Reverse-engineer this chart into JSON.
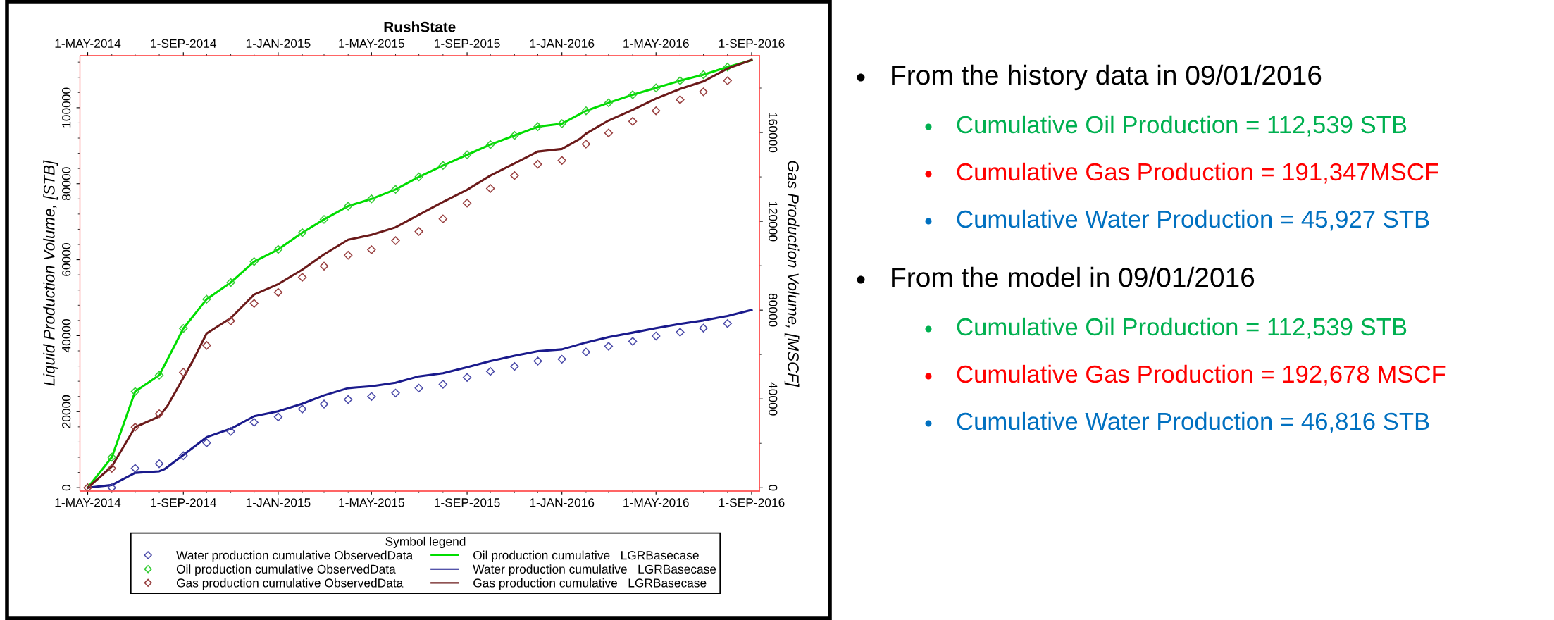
{
  "chart_data": [
    {
      "type": "line",
      "title": "RushState",
      "ylabel": "Liquid Production Volume, [STB]",
      "y2label": "Gas Production Volume, [MSCF]",
      "legend_title": "Symbol legend",
      "legend": "bottom",
      "x": [
        "2014-05-01",
        "2014-06-01",
        "2014-07-01",
        "2014-08-01",
        "2014-09-01",
        "2014-10-01",
        "2014-11-01",
        "2014-12-01",
        "2015-01-01",
        "2015-02-01",
        "2015-03-01",
        "2015-04-01",
        "2015-05-01",
        "2015-06-01",
        "2015-07-01",
        "2015-08-01",
        "2015-09-01",
        "2015-10-01",
        "2015-11-01",
        "2015-12-01",
        "2016-01-01",
        "2016-02-01",
        "2016-03-01",
        "2016-04-01",
        "2016-05-01",
        "2016-06-01",
        "2016-07-01",
        "2016-08-01"
      ],
      "series": [
        {
          "name": "Water production cumulative ObservedData",
          "type": "scatter",
          "marker": "diamond",
          "color": "#4a4aa8",
          "values": [
            null,
            0,
            5100,
            6300,
            8400,
            11800,
            14800,
            17200,
            18600,
            20700,
            22000,
            23200,
            24000,
            24900,
            26200,
            27200,
            29000,
            30600,
            31900,
            33300,
            33800,
            35700,
            37200,
            38500,
            39900,
            40900,
            42000,
            43200
          ]
        },
        {
          "name": "Oil production cumulative ObservedData",
          "type": "scatter",
          "marker": "diamond",
          "color": "#33cc33",
          "values": [
            null,
            8000,
            25300,
            29600,
            41900,
            49600,
            54000,
            59500,
            62700,
            67100,
            70600,
            74100,
            76000,
            78500,
            81800,
            84800,
            87600,
            90300,
            92700,
            95000,
            95800,
            99200,
            101300,
            103400,
            105200,
            107100,
            108700,
            110700
          ]
        },
        {
          "name": "Gas production cumulative ObservedData",
          "type": "scatter",
          "marker": "diamond",
          "color": "#994040",
          "axis": "y2",
          "values": [
            0,
            8700,
            27300,
            33300,
            52000,
            64100,
            75100,
            83000,
            88000,
            94800,
            99800,
            104700,
            107200,
            111300,
            115400,
            121100,
            128200,
            134800,
            140600,
            145700,
            147400,
            154800,
            159800,
            165000,
            169800,
            174800,
            178300,
            183300
          ]
        },
        {
          "name": "Oil production cumulative   LGRBasecase",
          "type": "line",
          "color": "#00dd00",
          "x": [
            "2014-05-01",
            "2014-06-01",
            "2014-07-01",
            "2014-08-01",
            "2014-08-11",
            "2014-09-01",
            "2014-10-01",
            "2014-11-01",
            "2014-12-01",
            "2015-01-01",
            "2015-02-01",
            "2015-03-01",
            "2015-04-01",
            "2015-05-01",
            "2015-06-01",
            "2015-07-01",
            "2015-08-01",
            "2015-09-01",
            "2015-10-01",
            "2015-11-01",
            "2015-12-01",
            "2016-01-01",
            "2016-02-01",
            "2016-03-01",
            "2016-04-01",
            "2016-05-01",
            "2016-06-01",
            "2016-07-01",
            "2016-08-01",
            "2016-09-01"
          ],
          "values": [
            0,
            8000,
            25300,
            29600,
            33500,
            41900,
            49600,
            54000,
            59500,
            62700,
            67100,
            70600,
            74100,
            76000,
            78500,
            81800,
            84800,
            87600,
            90300,
            92700,
            95000,
            95800,
            99200,
            101300,
            103400,
            105200,
            107100,
            108700,
            110700,
            112500
          ]
        },
        {
          "name": "Water production cumulative   LGRBasecase",
          "type": "line",
          "color": "#1a1a8c",
          "x": [
            "2014-05-01",
            "2014-06-01",
            "2014-07-01",
            "2014-08-01",
            "2014-08-08",
            "2014-09-01",
            "2014-10-01",
            "2014-11-01",
            "2014-12-01",
            "2015-01-01",
            "2015-02-01",
            "2015-03-01",
            "2015-04-01",
            "2015-05-01",
            "2015-06-01",
            "2015-07-01",
            "2015-08-01",
            "2015-09-01",
            "2015-10-01",
            "2015-11-01",
            "2015-12-01",
            "2016-01-01",
            "2016-02-01",
            "2016-03-01",
            "2016-04-01",
            "2016-05-01",
            "2016-06-01",
            "2016-07-01",
            "2016-08-01",
            "2016-09-01"
          ],
          "values": [
            0,
            700,
            3900,
            4300,
            4900,
            8600,
            13300,
            15500,
            18800,
            20100,
            22100,
            24300,
            26200,
            26700,
            27600,
            29300,
            30100,
            31700,
            33300,
            34700,
            35900,
            36400,
            38200,
            39600,
            40800,
            42000,
            43100,
            44000,
            45200,
            46800
          ]
        },
        {
          "name": "Gas production cumulative   LGRBasecase",
          "type": "line",
          "color": "#6b1a1a",
          "axis": "y2",
          "x": [
            "2014-05-01",
            "2014-06-01",
            "2014-07-01",
            "2014-08-01",
            "2014-08-12",
            "2014-09-01",
            "2014-09-14",
            "2014-10-01",
            "2014-11-01",
            "2014-12-01",
            "2015-01-01",
            "2015-02-01",
            "2015-03-01",
            "2015-04-01",
            "2015-05-01",
            "2015-06-01",
            "2015-07-01",
            "2015-08-01",
            "2015-09-01",
            "2015-10-01",
            "2015-11-01",
            "2015-12-01",
            "2016-01-01",
            "2016-01-24",
            "2016-02-01",
            "2016-03-01",
            "2016-04-01",
            "2016-05-01",
            "2016-06-01",
            "2016-07-01",
            "2016-08-01",
            "2016-09-01"
          ],
          "values": [
            0,
            9600,
            27300,
            32100,
            37100,
            49500,
            57700,
            69500,
            76400,
            87000,
            91700,
            98200,
            105100,
            111700,
            113900,
            117300,
            122900,
            128700,
            134200,
            140600,
            146100,
            151400,
            152600,
            157100,
            159500,
            165400,
            170200,
            175300,
            179600,
            183000,
            188800,
            192700
          ]
        }
      ],
      "xlim": [
        "2014-04-21",
        "2016-09-11"
      ],
      "xticks": [
        {
          "value": "2014-05-01",
          "label": "1-MAY-2014"
        },
        {
          "value": "2014-09-01",
          "label": "1-SEP-2014"
        },
        {
          "value": "2015-01-01",
          "label": "1-JAN-2015"
        },
        {
          "value": "2015-05-01",
          "label": "1-MAY-2015"
        },
        {
          "value": "2015-09-01",
          "label": "1-SEP-2015"
        },
        {
          "value": "2016-01-01",
          "label": "1-JAN-2016"
        },
        {
          "value": "2016-05-01",
          "label": "1-MAY-2016"
        },
        {
          "value": "2016-09-01",
          "label": "1-SEP-2016"
        }
      ],
      "x2lim": [
        "2014-04-21",
        "2016-09-11"
      ],
      "x2ticks": [
        {
          "value": "2014-05-01",
          "label": "1-MAY-2014"
        },
        {
          "value": "2014-09-01",
          "label": "1-SEP-2014"
        },
        {
          "value": "2015-01-01",
          "label": "1-JAN-2015"
        },
        {
          "value": "2015-05-01",
          "label": "1-MAY-2015"
        },
        {
          "value": "2015-09-01",
          "label": "1-SEP-2015"
        },
        {
          "value": "2016-01-01",
          "label": "1-JAN-2016"
        },
        {
          "value": "2016-05-01",
          "label": "1-MAY-2016"
        },
        {
          "value": "2016-09-01",
          "label": "1-SEP-2016"
        }
      ],
      "ylim": [
        -900,
        113700
      ],
      "yticks": [
        0,
        20000,
        40000,
        60000,
        80000,
        100000
      ],
      "y2lim": [
        -1500,
        194600
      ],
      "y2ticks": [
        0,
        40000,
        80000,
        120000,
        160000
      ],
      "grid": false
    },
    {
      "type": "other",
      "title": "From the history data in 09/01/2016",
      "annotations": [
        "Cumulative Oil Production = 112,539 STB",
        "Cumulative Gas Production = 191,347MSCF",
        "Cumulative Water Production = 45,927 STB"
      ],
      "colors": [
        "#00b050",
        "#ff0000",
        "#0070c0"
      ]
    },
    {
      "type": "other",
      "title": "From the model in 09/01/2016",
      "annotations": [
        "Cumulative Oil Production = 112,539 STB",
        "Cumulative Gas Production = 192,678 MSCF",
        "Cumulative Water Production = 46,816 STB"
      ],
      "colors": [
        "#00b050",
        "#ff0000",
        "#0070c0"
      ]
    }
  ]
}
